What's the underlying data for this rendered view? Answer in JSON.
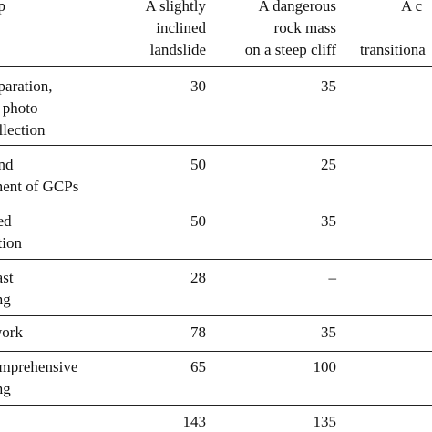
{
  "table": {
    "header": {
      "col0": [
        "ep"
      ],
      "col1": [
        "A slightly",
        "inclined",
        "landslide"
      ],
      "col2": [
        "A dangerous",
        "rock mass",
        "on a steep cliff"
      ],
      "col3_line1": "A c",
      "col3_line3": "transitiona"
    },
    "rows": [
      {
        "label": [
          "eparation,",
          "d photo",
          "ollection"
        ],
        "v1": "30",
        "v2": "35"
      },
      {
        "label": [
          "and",
          "ment of GCPs"
        ],
        "v1": "50",
        "v2": "25"
      },
      {
        "label": [
          "sed",
          "ation"
        ],
        "v1": "50",
        "v2": "35"
      },
      {
        "label": [
          "fast",
          "ing"
        ],
        "v1": "28",
        "v2": "–"
      },
      {
        "label": [
          "work"
        ],
        "v1": "78",
        "v2": "35"
      },
      {
        "label": [
          "omprehensive",
          "ing"
        ],
        "v1": "65",
        "v2": "100"
      },
      {
        "label": [],
        "v1": "143",
        "v2": "135"
      }
    ]
  }
}
